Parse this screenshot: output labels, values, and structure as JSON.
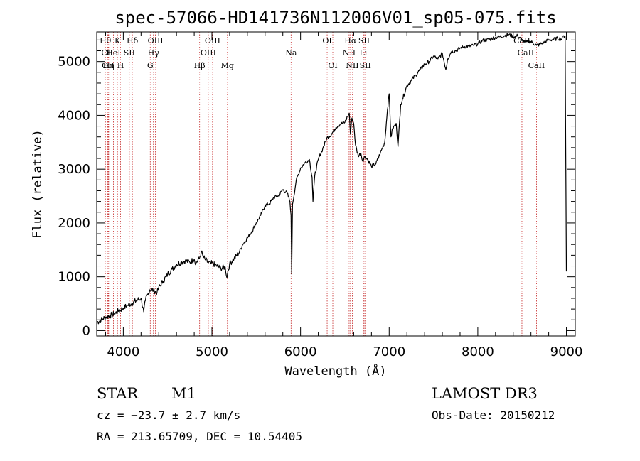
{
  "chart_data": {
    "type": "line",
    "title": "spec-57066-HD141736N112006V01_sp05-075.fits",
    "xlabel": "Wavelength (Å)",
    "ylabel": "Flux (relative)",
    "xlim": [
      3700,
      9100
    ],
    "ylim": [
      -100,
      5550
    ],
    "x_ticks": [
      4000,
      5000,
      6000,
      7000,
      8000,
      9000
    ],
    "y_ticks": [
      0,
      1000,
      2000,
      3000,
      4000,
      5000
    ],
    "series": [
      {
        "name": "spectrum",
        "x": [
          3700,
          3750,
          3800,
          3850,
          3900,
          3950,
          4000,
          4050,
          4100,
          4150,
          4200,
          4230,
          4250,
          4300,
          4340,
          4380,
          4400,
          4450,
          4500,
          4550,
          4600,
          4650,
          4700,
          4750,
          4800,
          4820,
          4860,
          4880,
          4900,
          4930,
          4960,
          4990,
          5000,
          5050,
          5100,
          5150,
          5170,
          5180,
          5200,
          5250,
          5300,
          5350,
          5400,
          5450,
          5500,
          5550,
          5600,
          5650,
          5700,
          5750,
          5800,
          5850,
          5880,
          5893,
          5900,
          5910,
          5950,
          6000,
          6050,
          6100,
          6130,
          6140,
          6160,
          6200,
          6250,
          6300,
          6350,
          6400,
          6450,
          6500,
          6530,
          6550,
          6563,
          6580,
          6600,
          6620,
          6650,
          6680,
          6700,
          6720,
          6750,
          6800,
          6850,
          6900,
          6950,
          6980,
          7000,
          7020,
          7040,
          7080,
          7100,
          7130,
          7150,
          7200,
          7250,
          7300,
          7350,
          7400,
          7450,
          7500,
          7550,
          7600,
          7640,
          7660,
          7700,
          7750,
          7800,
          7850,
          7900,
          7950,
          8000,
          8050,
          8100,
          8150,
          8200,
          8250,
          8300,
          8350,
          8400,
          8450,
          8498,
          8542,
          8580,
          8620,
          8662,
          8700,
          8750,
          8800,
          8850,
          8900,
          8950,
          8970,
          8985,
          9000
        ],
        "y": [
          150,
          200,
          250,
          280,
          310,
          370,
          420,
          470,
          510,
          560,
          600,
          350,
          560,
          760,
          750,
          700,
          800,
          920,
          1050,
          1140,
          1230,
          1270,
          1300,
          1270,
          1330,
          1250,
          1350,
          1470,
          1370,
          1310,
          1260,
          1240,
          1260,
          1210,
          1160,
          1180,
          980,
          1100,
          1240,
          1340,
          1430,
          1610,
          1720,
          1840,
          2000,
          2140,
          2330,
          2360,
          2480,
          2500,
          2620,
          2550,
          2400,
          2150,
          1050,
          2350,
          2780,
          3020,
          3120,
          3180,
          2850,
          2400,
          2880,
          3180,
          3380,
          3590,
          3650,
          3780,
          3840,
          3870,
          3980,
          4040,
          3650,
          3950,
          3850,
          3450,
          3250,
          3300,
          3150,
          3230,
          3200,
          3050,
          3100,
          3300,
          3500,
          4100,
          4400,
          3600,
          3760,
          3850,
          3420,
          4200,
          4300,
          4550,
          4650,
          4750,
          4850,
          4950,
          5000,
          5100,
          5050,
          5150,
          4850,
          5050,
          5180,
          5200,
          5250,
          5280,
          5280,
          5300,
          5330,
          5390,
          5400,
          5420,
          5450,
          5460,
          5480,
          5500,
          5460,
          5480,
          5400,
          5350,
          5380,
          5350,
          5300,
          5320,
          5360,
          5400,
          5410,
          5430,
          5420,
          5480,
          5470,
          1100
        ]
      }
    ],
    "lines": [
      {
        "label": "Hθ",
        "wl": 3798,
        "row": 1
      },
      {
        "label": "CII",
        "wl": 3820,
        "row": 2
      },
      {
        "label": "OII",
        "wl": 3828,
        "row": 3
      },
      {
        "label": "Hη",
        "wl": 3835,
        "row": 3
      },
      {
        "label": "K",
        "wl": 3934,
        "row": 1
      },
      {
        "label": "HeI",
        "wl": 3888,
        "row": 2
      },
      {
        "label": "H",
        "wl": 3969,
        "row": 3
      },
      {
        "label": "Hδ",
        "wl": 4102,
        "row": 1
      },
      {
        "label": "SII",
        "wl": 4068,
        "row": 2
      },
      {
        "label": "OIII",
        "wl": 4363,
        "row": 1
      },
      {
        "label": "Hγ",
        "wl": 4340,
        "row": 2
      },
      {
        "label": "G",
        "wl": 4304,
        "row": 3
      },
      {
        "label": "Hβ",
        "wl": 4861,
        "row": 3
      },
      {
        "label": "OIII",
        "wl": 5007,
        "row": 1
      },
      {
        "label": "OIII",
        "wl": 4959,
        "row": 2
      },
      {
        "label": "Mg",
        "wl": 5175,
        "row": 3
      },
      {
        "label": "Na",
        "wl": 5893,
        "row": 2
      },
      {
        "label": "OI",
        "wl": 6300,
        "row": 1
      },
      {
        "label": "OI",
        "wl": 6364,
        "row": 3
      },
      {
        "label": "Hα",
        "wl": 6563,
        "row": 1
      },
      {
        "label": "NII",
        "wl": 6548,
        "row": 2
      },
      {
        "label": "NII",
        "wl": 6584,
        "row": 3
      },
      {
        "label": "SII",
        "wl": 6717,
        "row": 1
      },
      {
        "label": "Li",
        "wl": 6708,
        "row": 2
      },
      {
        "label": "SII",
        "wl": 6731,
        "row": 3
      },
      {
        "label": "CaII",
        "wl": 8498,
        "row": 1
      },
      {
        "label": "CaII",
        "wl": 8542,
        "row": 2
      },
      {
        "label": "CaII",
        "wl": 8662,
        "row": 3
      }
    ],
    "line_color": "#000000",
    "marker_color": "#c62828"
  },
  "info": {
    "object_class": "STAR",
    "subclass": "M1",
    "survey": "LAMOST DR3",
    "cz": "cz = −23.7 ± 2.7 km/s",
    "obs_date": "Obs-Date: 20150212",
    "coords": "RA = 213.65709, DEC =  10.54405"
  }
}
